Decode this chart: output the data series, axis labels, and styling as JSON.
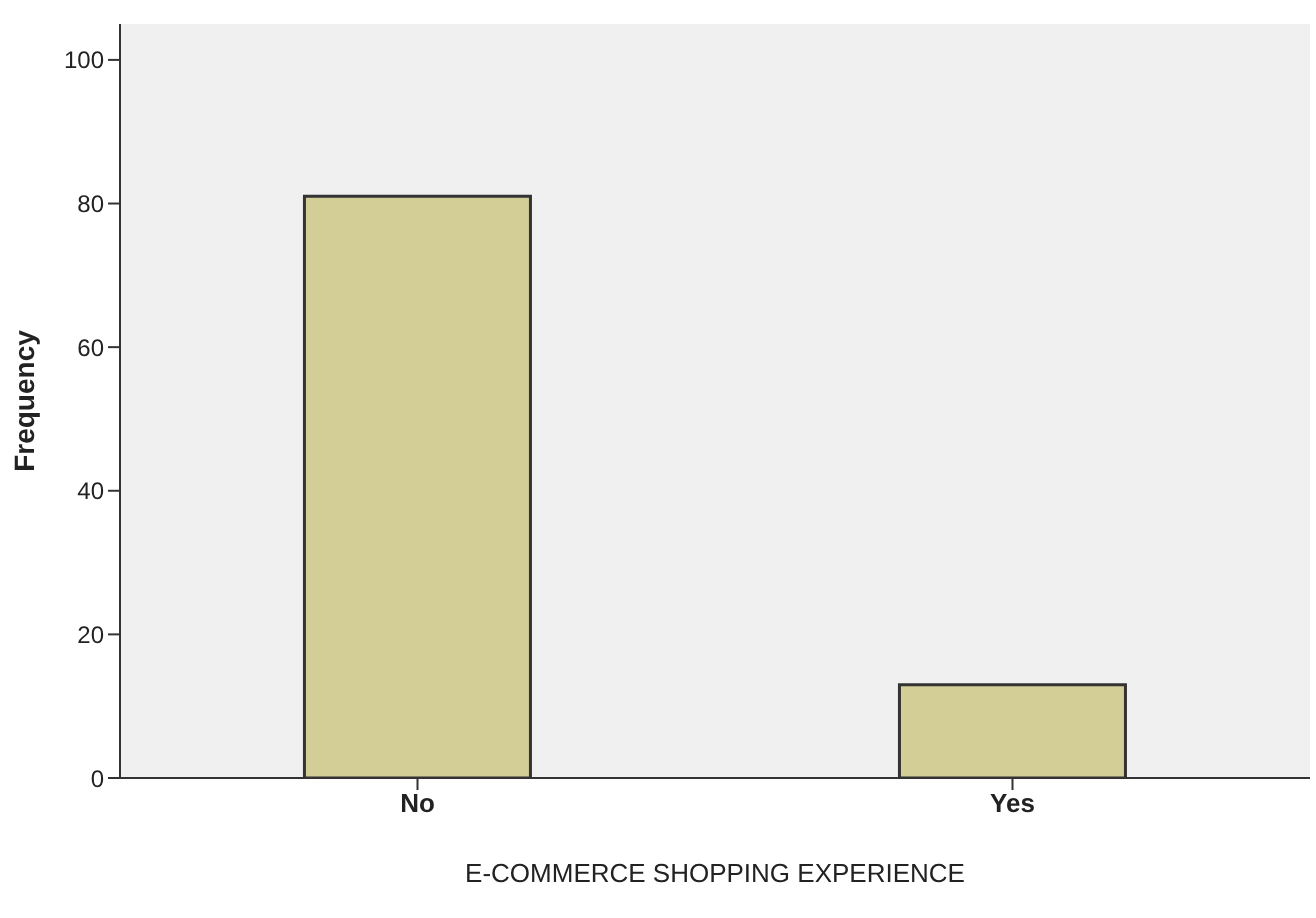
{
  "chart_data": {
    "type": "bar",
    "xlabel": "E-COMMERCE SHOPPING EXPERIENCE",
    "ylabel": "Frequency",
    "categories": [
      "No",
      "Yes"
    ],
    "values": [
      81,
      13
    ],
    "color": "#d3cd96",
    "ylim": [
      0,
      105
    ],
    "yticks": [
      0,
      20,
      40,
      60,
      80,
      100
    ],
    "grid": false
  }
}
